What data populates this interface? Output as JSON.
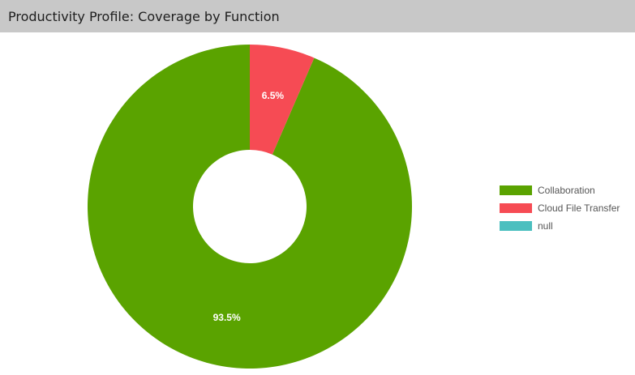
{
  "header": {
    "title": "Productivity Profile: Coverage by Function"
  },
  "chart_data": {
    "type": "pie",
    "title": "Productivity Profile: Coverage by Function",
    "donut": true,
    "categories": [
      "Collaboration",
      "Cloud File Transfer",
      "null"
    ],
    "values": [
      93.5,
      6.5,
      0
    ],
    "labels": [
      "93.5%",
      "6.5%",
      ""
    ],
    "colors": [
      "#5aa300",
      "#f64b54",
      "#4bbfbf"
    ],
    "legend_position": "right"
  }
}
